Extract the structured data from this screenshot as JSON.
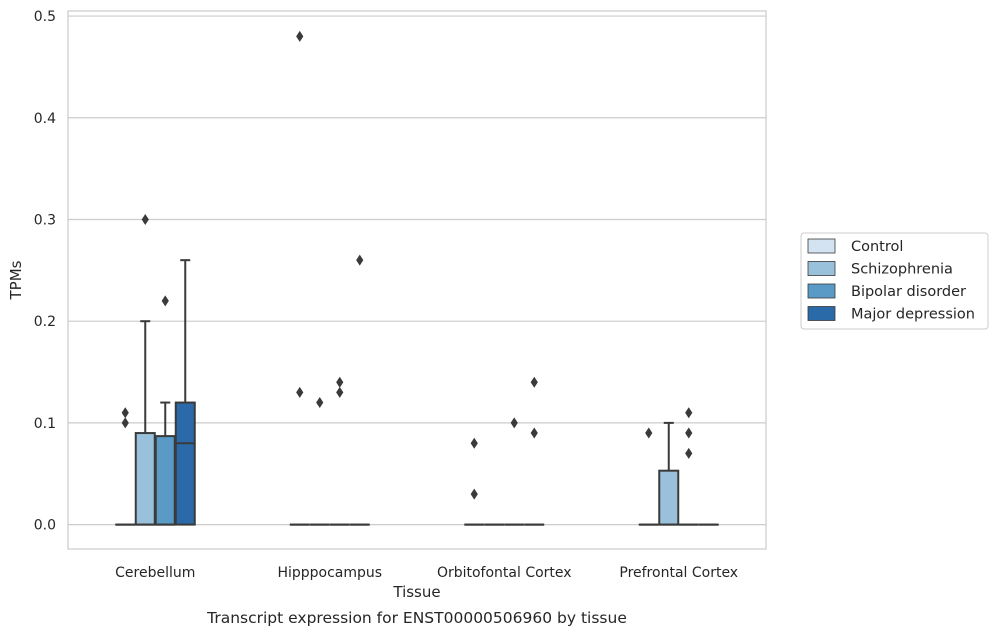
{
  "chart_data": {
    "type": "box",
    "title": "Transcript expression for ENST00000506960 by tissue",
    "xlabel": "Tissue",
    "ylabel": "TPMs",
    "ylim": [
      -0.024,
      0.505
    ],
    "yticks": [
      0.0,
      0.1,
      0.2,
      0.3,
      0.4,
      0.5
    ],
    "ytick_labels": [
      "0.0",
      "0.1",
      "0.2",
      "0.3",
      "0.4",
      "0.5"
    ],
    "grid": true,
    "legend_position": "right",
    "categories": [
      "Cerebellum",
      "Hipppocampus",
      "Orbitofontal Cortex",
      "Prefrontal Cortex"
    ],
    "series": [
      {
        "name": "Control",
        "color": "#d4e3f2",
        "boxes": [
          {
            "q1": 0,
            "median": 0,
            "q3": 0,
            "whisker_low": 0,
            "whisker_high": 0,
            "outliers": [
              0.1,
              0.11
            ]
          },
          {
            "q1": 0,
            "median": 0,
            "q3": 0,
            "whisker_low": 0,
            "whisker_high": 0,
            "outliers": [
              0.13,
              0.48
            ]
          },
          {
            "q1": 0,
            "median": 0,
            "q3": 0,
            "whisker_low": 0,
            "whisker_high": 0,
            "outliers": [
              0.03,
              0.08
            ]
          },
          {
            "q1": 0,
            "median": 0,
            "q3": 0,
            "whisker_low": 0,
            "whisker_high": 0,
            "outliers": [
              0.09
            ]
          }
        ]
      },
      {
        "name": "Schizophrenia",
        "color": "#9ac1dc",
        "boxes": [
          {
            "q1": 0,
            "median": 0,
            "q3": 0.09,
            "whisker_low": 0,
            "whisker_high": 0.2,
            "outliers": [
              0.3
            ]
          },
          {
            "q1": 0,
            "median": 0,
            "q3": 0,
            "whisker_low": 0,
            "whisker_high": 0,
            "outliers": [
              0.12
            ]
          },
          {
            "q1": 0,
            "median": 0,
            "q3": 0,
            "whisker_low": 0,
            "whisker_high": 0,
            "outliers": []
          },
          {
            "q1": 0,
            "median": 0,
            "q3": 0.053,
            "whisker_low": 0,
            "whisker_high": 0.1,
            "outliers": []
          }
        ]
      },
      {
        "name": "Bipolar disorder",
        "color": "#5a9ac6",
        "boxes": [
          {
            "q1": 0,
            "median": 0,
            "q3": 0.087,
            "whisker_low": 0,
            "whisker_high": 0.12,
            "outliers": [
              0.22
            ]
          },
          {
            "q1": 0,
            "median": 0,
            "q3": 0,
            "whisker_low": 0,
            "whisker_high": 0,
            "outliers": [
              0.13,
              0.14
            ]
          },
          {
            "q1": 0,
            "median": 0,
            "q3": 0,
            "whisker_low": 0,
            "whisker_high": 0,
            "outliers": [
              0.1
            ]
          },
          {
            "q1": 0,
            "median": 0,
            "q3": 0,
            "whisker_low": 0,
            "whisker_high": 0,
            "outliers": [
              0.07,
              0.09,
              0.11
            ]
          }
        ]
      },
      {
        "name": "Major depression",
        "color": "#2a6aa8",
        "boxes": [
          {
            "q1": 0,
            "median": 0.08,
            "q3": 0.12,
            "whisker_low": 0,
            "whisker_high": 0.26,
            "outliers": []
          },
          {
            "q1": 0,
            "median": 0,
            "q3": 0,
            "whisker_low": 0,
            "whisker_high": 0,
            "outliers": [
              0.26
            ]
          },
          {
            "q1": 0,
            "median": 0,
            "q3": 0,
            "whisker_low": 0,
            "whisker_high": 0,
            "outliers": [
              0.09,
              0.14
            ]
          },
          {
            "q1": 0,
            "median": 0,
            "q3": 0,
            "whisker_low": 0,
            "whisker_high": 0,
            "outliers": []
          }
        ]
      }
    ]
  }
}
